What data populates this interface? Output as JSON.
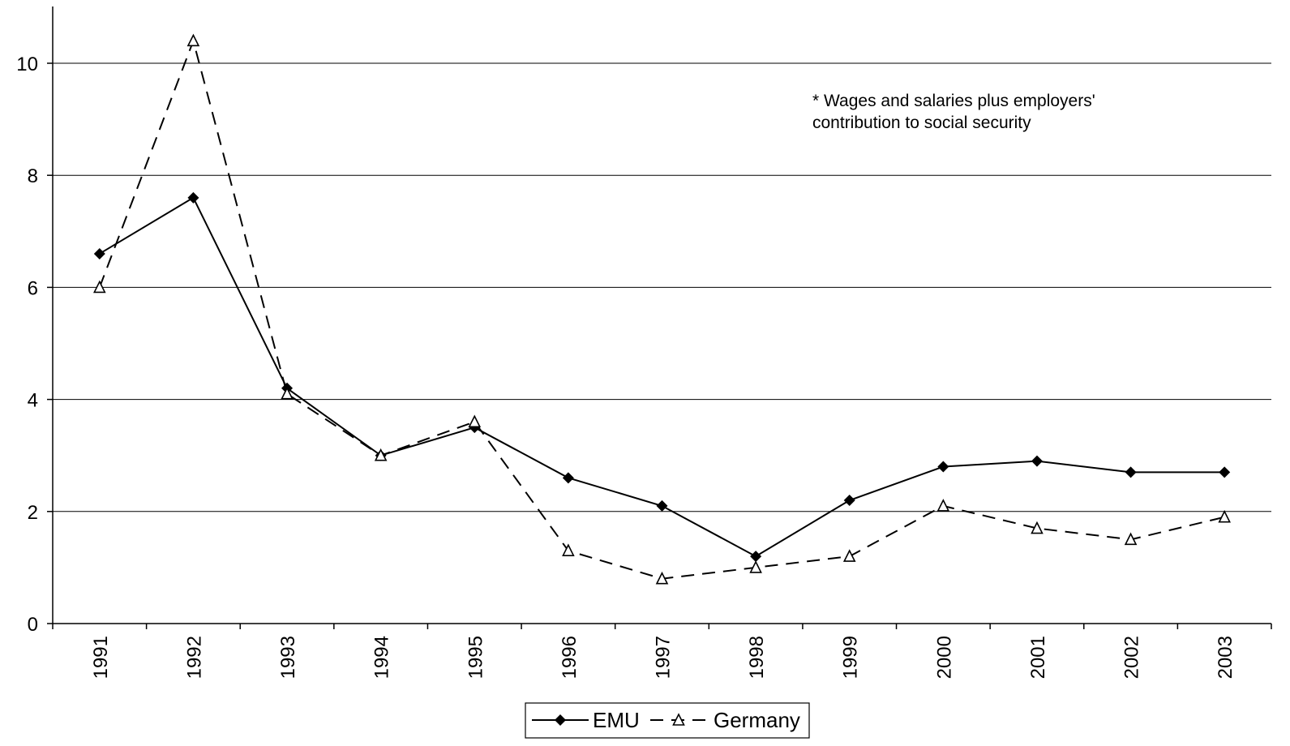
{
  "chart_data": {
    "type": "line",
    "categories": [
      "1991",
      "1992",
      "1993",
      "1994",
      "1995",
      "1996",
      "1997",
      "1998",
      "1999",
      "2000",
      "2001",
      "2002",
      "2003"
    ],
    "series": [
      {
        "name": "EMU",
        "values": [
          6.6,
          7.6,
          4.2,
          3.0,
          3.5,
          2.6,
          2.1,
          1.2,
          2.2,
          2.8,
          2.9,
          2.7,
          2.7
        ],
        "color": "#000000",
        "marker": "diamond-filled",
        "line_style": "solid"
      },
      {
        "name": "Germany",
        "values": [
          6.0,
          10.4,
          4.1,
          3.0,
          3.6,
          1.3,
          0.8,
          1.0,
          1.2,
          2.1,
          1.7,
          1.5,
          1.9
        ],
        "color": "#000000",
        "marker": "triangle-open",
        "line_style": "dashed"
      }
    ],
    "ylim": [
      0,
      11
    ],
    "yticks": [
      "0",
      "2",
      "4",
      "6",
      "8",
      "10"
    ],
    "grid": "horizontal",
    "annotation_lines": [
      "* Wages and salaries plus employers'",
      "contribution to social security"
    ],
    "legend_position": "bottom-center"
  }
}
